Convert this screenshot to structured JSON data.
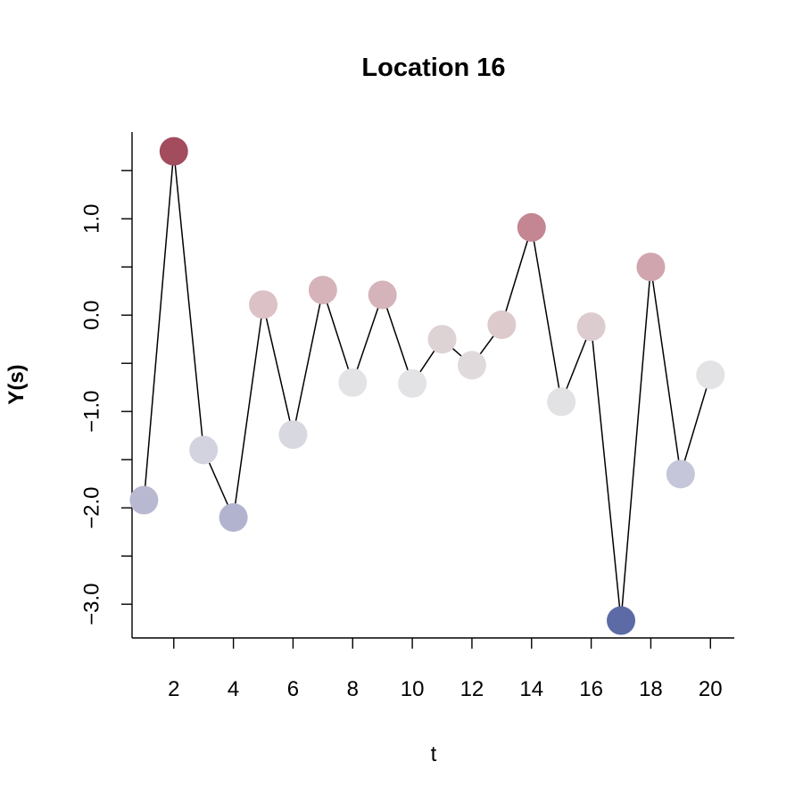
{
  "chart_data": {
    "type": "line",
    "title": "Location 16",
    "xlabel": "t",
    "ylabel": "Y(s)",
    "xlim": [
      0.6,
      20.8
    ],
    "ylim": [
      -3.35,
      1.9
    ],
    "xticks": [
      2,
      4,
      6,
      8,
      10,
      12,
      14,
      16,
      18,
      20
    ],
    "xtick_labels": [
      "2",
      "4",
      "6",
      "8",
      "10",
      "12",
      "14",
      "16",
      "18",
      "20"
    ],
    "yticks": [
      -3.0,
      -2.5,
      -2.0,
      -1.5,
      -1.0,
      -0.5,
      0.0,
      0.5,
      1.0,
      1.5
    ],
    "ytick_labels": [
      "−3.0",
      "",
      "−2.0",
      "",
      "−1.0",
      "",
      "0.0",
      "",
      "1.0",
      ""
    ],
    "grid": false,
    "series": [
      {
        "x": [
          1,
          2,
          3,
          4,
          5,
          6,
          7,
          8,
          9,
          10,
          11,
          12,
          13,
          14,
          15,
          16,
          17,
          18,
          19,
          20
        ],
        "values": [
          -1.92,
          1.7,
          -1.4,
          -2.1,
          0.11,
          -1.24,
          0.26,
          -0.7,
          0.21,
          -0.71,
          -0.25,
          -0.52,
          -0.1,
          0.91,
          -0.9,
          -0.12,
          -3.17,
          0.5,
          -1.65,
          -0.62
        ],
        "point_colors": [
          "#b8b9d1",
          "#a34c5e",
          "#d2d3de",
          "#b2b3cf",
          "#dcc1c6",
          "#d7d8e0",
          "#d6b2b9",
          "#e3e3e6",
          "#d5b3ba",
          "#e3e3e6",
          "#ddd2d4",
          "#e0dadc",
          "#dccacc",
          "#c38692",
          "#e2e2e5",
          "#dccccf",
          "#5c6aa6",
          "#d0a5ad",
          "#c5c6da",
          "#e3e3e6"
        ]
      }
    ]
  }
}
